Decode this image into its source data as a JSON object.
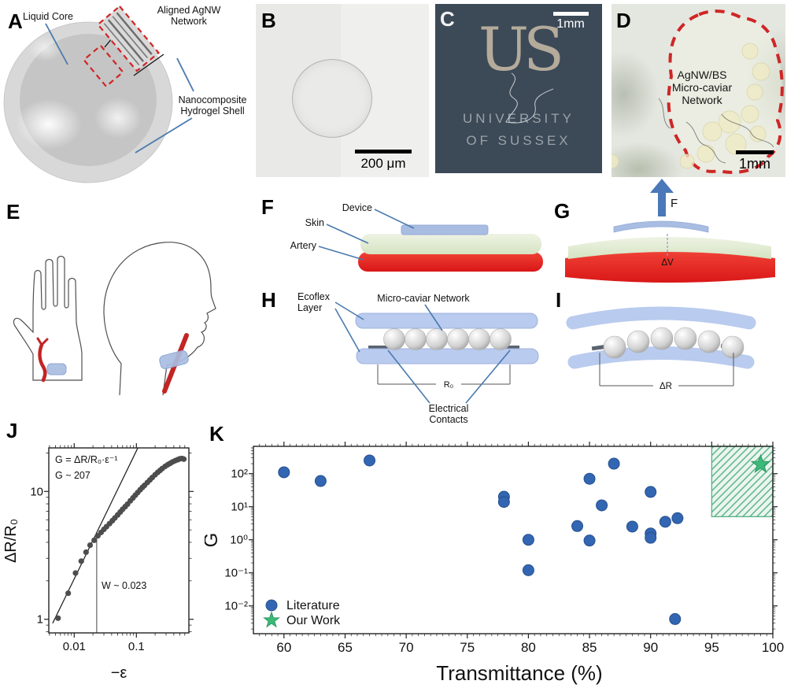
{
  "panels": {
    "a": {
      "label": "A",
      "liquid_core": "Liquid Core",
      "agnw_1": "Aligned AgNW",
      "agnw_2": "Network",
      "shell_1": "Nanocomposite",
      "shell_2": "Hydrogel Shell"
    },
    "b": {
      "label": "B",
      "scale_bar": "200 μm"
    },
    "c": {
      "label": "C",
      "scale_bar": "1mm",
      "logo": "US",
      "name_1": "UNIVERSITY",
      "name_2": "OF SUSSEX"
    },
    "d": {
      "label": "D",
      "scale_bar": "1mm",
      "caption_1": "AgNW/BS",
      "caption_2": "Micro-caviar",
      "caption_3": "Network"
    },
    "e": {
      "label": "E"
    },
    "f": {
      "label": "F",
      "device": "Device",
      "skin": "Skin",
      "artery": "Artery"
    },
    "g": {
      "label": "G",
      "force": "F",
      "delta_v": "ΔV"
    },
    "h": {
      "label": "H",
      "ecoflex_1": "Ecoflex",
      "ecoflex_2": "Layer",
      "network": "Micro-caviar Network",
      "r0": "R₀",
      "contacts_1": "Electrical",
      "contacts_2": "Contacts"
    },
    "i": {
      "label": "I",
      "delta_r": "ΔR"
    },
    "j": {
      "label": "J"
    },
    "k": {
      "label": "K"
    }
  },
  "colors": {
    "artery_red": "#e32322",
    "device_blue": "#a9bde2",
    "ecoflex_blue": "#b9cbee",
    "skin_green": "#dfe9d4",
    "literature_blue": "#3366b2",
    "our_work_green": "#3cb878",
    "hatch_green": "#5cb489",
    "dashed_red": "#cf2626",
    "label_line_blue": "#4a7aad",
    "photo_c_bg": "#3c4957"
  },
  "chart_data": [
    {
      "id": "J",
      "type": "scatter",
      "xlabel": "−ε",
      "ylabel": "ΔR/R₀",
      "xscale": "log",
      "yscale": "log",
      "xlim": [
        0.0039,
        0.7
      ],
      "ylim": [
        0.78,
        22
      ],
      "x_ticks": [
        0.01,
        0.1
      ],
      "x_tick_labels": [
        "0.01",
        "0.1"
      ],
      "y_ticks": [
        1,
        10
      ],
      "y_tick_labels": [
        "1",
        "10"
      ],
      "annotations": {
        "formula": "G = ΔR/R₀·ε⁻¹",
        "gain": "G ~ 207",
        "width": "W ~ 0.023"
      },
      "fit_line": {
        "x": [
          0.0045,
          0.106
        ],
        "y": [
          0.93,
          22
        ]
      },
      "threshold": {
        "x": 0.023,
        "y_top": 4.3
      },
      "marker_color": "#4d4d4d",
      "points": [
        [
          0.0055,
          1.02
        ],
        [
          0.008,
          1.6
        ],
        [
          0.0105,
          2.3
        ],
        [
          0.013,
          2.85
        ],
        [
          0.0155,
          3.35
        ],
        [
          0.018,
          3.8
        ],
        [
          0.021,
          4.15
        ],
        [
          0.024,
          4.5
        ],
        [
          0.027,
          4.78
        ],
        [
          0.03,
          5.05
        ],
        [
          0.033,
          5.3
        ],
        [
          0.037,
          5.6
        ],
        [
          0.041,
          5.9
        ],
        [
          0.045,
          6.2
        ],
        [
          0.05,
          6.55
        ],
        [
          0.055,
          6.9
        ],
        [
          0.06,
          7.25
        ],
        [
          0.066,
          7.6
        ],
        [
          0.072,
          7.95
        ],
        [
          0.08,
          8.45
        ],
        [
          0.088,
          8.9
        ],
        [
          0.096,
          9.35
        ],
        [
          0.105,
          9.8
        ],
        [
          0.115,
          10.3
        ],
        [
          0.125,
          10.75
        ],
        [
          0.135,
          11.15
        ],
        [
          0.15,
          11.75
        ],
        [
          0.165,
          12.3
        ],
        [
          0.18,
          12.85
        ],
        [
          0.2,
          13.5
        ],
        [
          0.22,
          14.1
        ],
        [
          0.24,
          14.6
        ],
        [
          0.26,
          15.1
        ],
        [
          0.29,
          15.7
        ],
        [
          0.32,
          16.2
        ],
        [
          0.35,
          16.6
        ],
        [
          0.38,
          17.0
        ],
        [
          0.42,
          17.4
        ],
        [
          0.46,
          17.7
        ],
        [
          0.5,
          18.0
        ],
        [
          0.54,
          18.1
        ],
        [
          0.58,
          17.9
        ]
      ]
    },
    {
      "id": "K",
      "type": "scatter",
      "xlabel": "Transmittance (%)",
      "ylabel": "G",
      "xscale": "linear",
      "yscale": "log",
      "xlim": [
        57.5,
        100
      ],
      "ylim": [
        0.0015,
        670
      ],
      "x_ticks": [
        60,
        65,
        70,
        75,
        80,
        85,
        90,
        95,
        100
      ],
      "y_ticks": [
        100,
        10,
        1,
        0.1,
        0.01
      ],
      "y_tick_labels": [
        "10²",
        "10¹",
        "10⁰",
        "10⁻¹",
        "10⁻²"
      ],
      "legend": {
        "items": [
          {
            "label": "Literature",
            "marker": "circle",
            "color": "#3366b2"
          },
          {
            "label": "Our Work",
            "marker": "star",
            "color": "#3cb878"
          }
        ]
      },
      "highlight_region": {
        "x": [
          95,
          100
        ],
        "y": [
          5,
          670
        ],
        "fill": "#eef7f1",
        "line_color": "#5cb489"
      },
      "series": [
        {
          "name": "Literature",
          "marker": "circle",
          "color": "#3366b2",
          "edge": "#27508e",
          "points": [
            [
              60,
              110
            ],
            [
              63,
              60
            ],
            [
              67,
              250
            ],
            [
              78,
              20
            ],
            [
              78,
              14
            ],
            [
              80,
              1.0
            ],
            [
              80,
              0.12
            ],
            [
              84,
              2.6
            ],
            [
              85,
              70
            ],
            [
              85,
              0.95
            ],
            [
              86,
              11
            ],
            [
              87,
              200
            ],
            [
              88.5,
              2.5
            ],
            [
              90,
              28
            ],
            [
              90,
              1.55
            ],
            [
              90,
              1.15
            ],
            [
              91.2,
              3.5
            ],
            [
              92.2,
              4.5
            ],
            [
              92,
              0.004
            ]
          ]
        },
        {
          "name": "Our Work",
          "marker": "star",
          "color": "#3cb878",
          "edge": "#2a9a5f",
          "points": [
            [
              99,
              190
            ]
          ]
        }
      ]
    }
  ]
}
